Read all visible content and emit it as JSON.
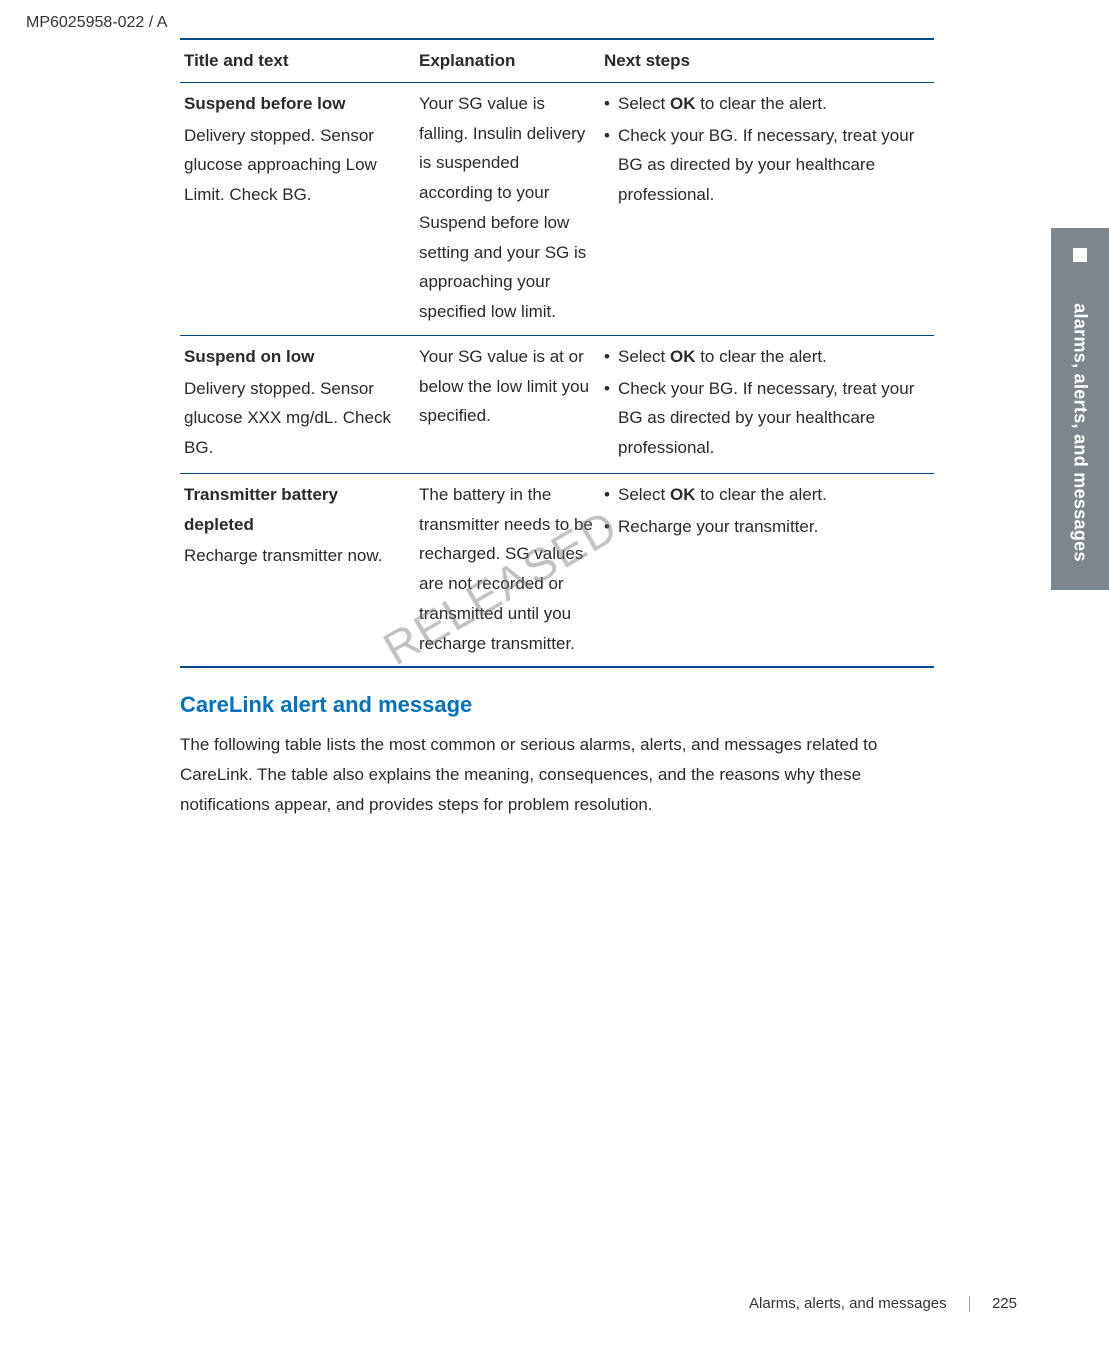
{
  "doc_id": "MP6025958-022 / A",
  "side_tab": "alarms, alerts, and messages",
  "table": {
    "headers": [
      "Title and text",
      "Explanation",
      "Next steps"
    ],
    "rows": [
      {
        "title_strong": "Suspend before low",
        "title_body": "Delivery stopped. Sensor glucose approaching Low Limit. Check BG.",
        "explanation": "Your SG value is falling. Insulin delivery is suspended according to your Suspend before low setting and your SG is approaching your specified low limit.",
        "steps": [
          {
            "pre": "Select ",
            "bold": "OK",
            "post": " to clear the alert."
          },
          {
            "pre": "Check your BG. If necessary, treat your BG as directed by your healthcare professional.",
            "bold": "",
            "post": ""
          }
        ]
      },
      {
        "title_strong": "Suspend on low",
        "title_body": "Delivery stopped. Sensor glucose XXX mg/dL. Check BG.",
        "explanation": "Your SG value is at or below the low limit you specified.",
        "steps": [
          {
            "pre": "Select ",
            "bold": "OK",
            "post": " to clear the alert."
          },
          {
            "pre": "Check your BG. If necessary, treat your BG as directed by your healthcare professional.",
            "bold": "",
            "post": ""
          }
        ]
      },
      {
        "title_strong": "Transmitter battery depleted",
        "title_body": "Recharge transmitter now.",
        "explanation": "The battery in the transmitter needs to be recharged. SG values are not recorded or transmitted until you recharge transmitter.",
        "steps": [
          {
            "pre": "Select ",
            "bold": "OK",
            "post": " to clear the alert."
          },
          {
            "pre": "Recharge your transmitter.",
            "bold": "",
            "post": ""
          }
        ]
      }
    ]
  },
  "section": {
    "heading": "CareLink alert and message",
    "intro": "The following table lists the most common or serious alarms, alerts, and messages related to CareLink. The table also explains the meaning, consequences, and the reasons why these notifications appear, and provides steps for problem resolution."
  },
  "watermark": "RELEASED",
  "footer": {
    "label": "Alarms, alerts, and messages",
    "page": "225"
  }
}
